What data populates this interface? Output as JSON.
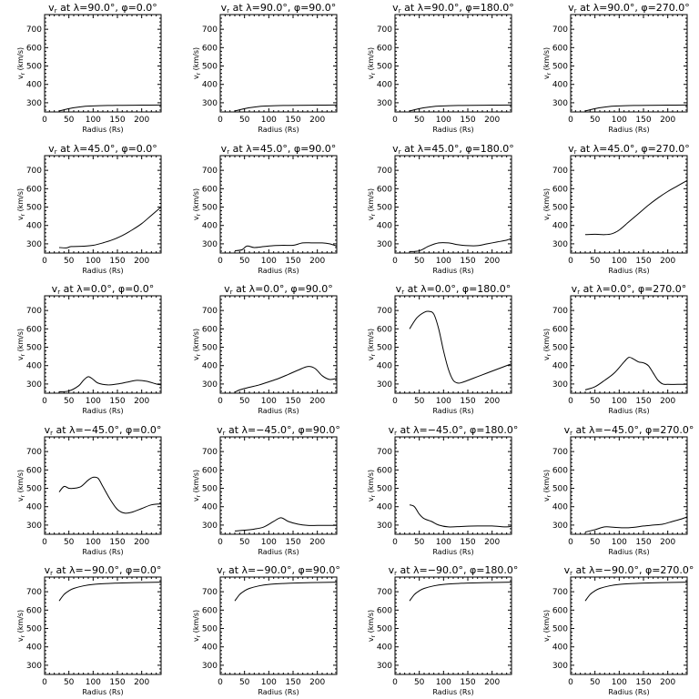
{
  "chart_data": [
    {
      "type": "line",
      "title": "v_r at λ=90.0°, φ=0.0°",
      "title_main": "v",
      "title_sub": "r",
      "title_rest": " at λ=90.0°, φ=0.0°",
      "xlabel": "Radius (Rs)",
      "ylabel": "v_r (km/s)",
      "ylabel_main": "v",
      "ylabel_sub": "r",
      "ylabel_rest": " (km/s)",
      "xlim": [
        0,
        240
      ],
      "ylim": [
        250,
        780
      ],
      "xticks": [
        0,
        50,
        100,
        150,
        200
      ],
      "yticks": [
        300,
        400,
        500,
        600,
        700
      ],
      "grid": false,
      "x": [
        30,
        45,
        60,
        80,
        100,
        130,
        160,
        200,
        240
      ],
      "y": [
        255,
        265,
        273,
        280,
        283,
        285,
        286,
        287,
        288
      ]
    },
    {
      "type": "line",
      "title": "v_r at λ=90.0°, φ=90.0°",
      "title_main": "v",
      "title_sub": "r",
      "title_rest": " at λ=90.0°, φ=90.0°",
      "xlabel": "Radius (Rs)",
      "ylabel": "v_r (km/s)",
      "ylabel_main": "v",
      "ylabel_sub": "r",
      "ylabel_rest": " (km/s)",
      "xlim": [
        0,
        240
      ],
      "ylim": [
        250,
        780
      ],
      "xticks": [
        0,
        50,
        100,
        150,
        200
      ],
      "yticks": [
        300,
        400,
        500,
        600,
        700
      ],
      "grid": false,
      "x": [
        30,
        45,
        60,
        80,
        100,
        130,
        160,
        200,
        240
      ],
      "y": [
        255,
        265,
        273,
        280,
        283,
        285,
        286,
        287,
        288
      ]
    },
    {
      "type": "line",
      "title": "v_r at λ=90.0°, φ=180.0°",
      "title_main": "v",
      "title_sub": "r",
      "title_rest": " at λ=90.0°, φ=180.0°",
      "xlabel": "Radius (Rs)",
      "ylabel": "v_r (km/s)",
      "ylabel_main": "v",
      "ylabel_sub": "r",
      "ylabel_rest": " (km/s)",
      "xlim": [
        0,
        240
      ],
      "ylim": [
        250,
        780
      ],
      "xticks": [
        0,
        50,
        100,
        150,
        200
      ],
      "yticks": [
        300,
        400,
        500,
        600,
        700
      ],
      "grid": false,
      "x": [
        30,
        45,
        60,
        80,
        100,
        130,
        160,
        200,
        240
      ],
      "y": [
        255,
        265,
        273,
        280,
        283,
        285,
        286,
        287,
        288
      ]
    },
    {
      "type": "line",
      "title": "v_r at λ=90.0°, φ=270.0°",
      "title_main": "v",
      "title_sub": "r",
      "title_rest": " at λ=90.0°, φ=270.0°",
      "xlabel": "Radius (Rs)",
      "ylabel": "v_r (km/s)",
      "ylabel_main": "v",
      "ylabel_sub": "r",
      "ylabel_rest": " (km/s)",
      "xlim": [
        0,
        240
      ],
      "ylim": [
        250,
        780
      ],
      "xticks": [
        0,
        50,
        100,
        150,
        200
      ],
      "yticks": [
        300,
        400,
        500,
        600,
        700
      ],
      "grid": false,
      "x": [
        30,
        45,
        60,
        80,
        100,
        130,
        160,
        200,
        240
      ],
      "y": [
        255,
        265,
        273,
        280,
        283,
        285,
        286,
        287,
        288
      ]
    },
    {
      "type": "line",
      "title": "v_r at λ=45.0°, φ=0.0°",
      "title_main": "v",
      "title_sub": "r",
      "title_rest": " at λ=45.0°, φ=0.0°",
      "xlabel": "Radius (Rs)",
      "ylabel": "v_r (km/s)",
      "ylabel_main": "v",
      "ylabel_sub": "r",
      "ylabel_rest": " (km/s)",
      "xlim": [
        0,
        240
      ],
      "ylim": [
        250,
        780
      ],
      "xticks": [
        0,
        50,
        100,
        150,
        200
      ],
      "yticks": [
        300,
        400,
        500,
        600,
        700
      ],
      "grid": false,
      "x": [
        30,
        45,
        55,
        80,
        100,
        120,
        140,
        160,
        180,
        200,
        220,
        240
      ],
      "y": [
        280,
        278,
        285,
        287,
        292,
        305,
        322,
        345,
        375,
        410,
        455,
        500
      ]
    },
    {
      "type": "line",
      "title": "v_r at λ=45.0°, φ=90.0°",
      "title_main": "v",
      "title_sub": "r",
      "title_rest": " at λ=45.0°, φ=90.0°",
      "xlabel": "Radius (Rs)",
      "ylabel": "v_r (km/s)",
      "ylabel_main": "v",
      "ylabel_sub": "r",
      "ylabel_rest": " (km/s)",
      "xlim": [
        0,
        240
      ],
      "ylim": [
        250,
        780
      ],
      "xticks": [
        0,
        50,
        100,
        150,
        200
      ],
      "yticks": [
        300,
        400,
        500,
        600,
        700
      ],
      "grid": false,
      "x": [
        30,
        45,
        55,
        70,
        90,
        110,
        130,
        150,
        170,
        190,
        210,
        225,
        240
      ],
      "y": [
        262,
        268,
        288,
        280,
        285,
        290,
        292,
        292,
        305,
        305,
        305,
        300,
        288
      ]
    },
    {
      "type": "line",
      "title": "v_r at λ=45.0°, φ=180.0°",
      "title_main": "v",
      "title_sub": "r",
      "title_rest": " at λ=45.0°, φ=180.0°",
      "xlabel": "Radius (Rs)",
      "ylabel": "v_r (km/s)",
      "ylabel_main": "v",
      "ylabel_sub": "r",
      "ylabel_rest": " (km/s)",
      "xlim": [
        0,
        240
      ],
      "ylim": [
        250,
        780
      ],
      "xticks": [
        0,
        50,
        100,
        150,
        200
      ],
      "yticks": [
        300,
        400,
        500,
        600,
        700
      ],
      "grid": false,
      "x": [
        30,
        50,
        70,
        90,
        110,
        130,
        150,
        170,
        190,
        210,
        230,
        240
      ],
      "y": [
        258,
        262,
        288,
        305,
        305,
        295,
        290,
        290,
        300,
        310,
        320,
        330
      ]
    },
    {
      "type": "line",
      "title": "v_r at λ=45.0°, φ=270.0°",
      "title_main": "v",
      "title_sub": "r",
      "title_rest": " at λ=45.0°, φ=270.0°",
      "xlabel": "Radius (Rs)",
      "ylabel": "v_r (km/s)",
      "ylabel_main": "v",
      "ylabel_sub": "r",
      "ylabel_rest": " (km/s)",
      "xlim": [
        0,
        240
      ],
      "ylim": [
        250,
        780
      ],
      "xticks": [
        0,
        50,
        100,
        150,
        200
      ],
      "yticks": [
        300,
        400,
        500,
        600,
        700
      ],
      "grid": false,
      "x": [
        30,
        50,
        70,
        85,
        100,
        120,
        140,
        160,
        180,
        200,
        220,
        240
      ],
      "y": [
        350,
        352,
        350,
        355,
        375,
        420,
        465,
        510,
        550,
        585,
        615,
        645
      ]
    },
    {
      "type": "line",
      "title": "v_r at λ=0.0°, φ=0.0°",
      "title_main": "v",
      "title_sub": "r",
      "title_rest": " at λ=0.0°, φ=0.0°",
      "xlabel": "Radius (Rs)",
      "ylabel": "v_r (km/s)",
      "ylabel_main": "v",
      "ylabel_sub": "r",
      "ylabel_rest": " (km/s)",
      "xlim": [
        0,
        240
      ],
      "ylim": [
        250,
        780
      ],
      "xticks": [
        0,
        50,
        100,
        150,
        200
      ],
      "yticks": [
        300,
        400,
        500,
        600,
        700
      ],
      "grid": false,
      "x": [
        30,
        50,
        70,
        80,
        90,
        100,
        110,
        130,
        150,
        170,
        190,
        210,
        230,
        240
      ],
      "y": [
        258,
        262,
        290,
        320,
        340,
        325,
        305,
        295,
        300,
        310,
        320,
        315,
        300,
        295
      ]
    },
    {
      "type": "line",
      "title": "v_r at λ=0.0°, φ=90.0°",
      "title_main": "v",
      "title_sub": "r",
      "title_rest": " at λ=0.0°, φ=90.0°",
      "xlabel": "Radius (Rs)",
      "ylabel": "v_r (km/s)",
      "ylabel_main": "v",
      "ylabel_sub": "r",
      "ylabel_rest": " (km/s)",
      "xlim": [
        0,
        240
      ],
      "ylim": [
        250,
        780
      ],
      "xticks": [
        0,
        50,
        100,
        150,
        200
      ],
      "yticks": [
        300,
        400,
        500,
        600,
        700
      ],
      "grid": false,
      "x": [
        30,
        40,
        60,
        80,
        100,
        120,
        140,
        160,
        180,
        195,
        210,
        225,
        240
      ],
      "y": [
        255,
        268,
        282,
        295,
        312,
        330,
        352,
        375,
        395,
        385,
        345,
        325,
        330
      ]
    },
    {
      "type": "line",
      "title": "v_r at λ=0.0°, φ=180.0°",
      "title_main": "v",
      "title_sub": "r",
      "title_rest": " at λ=0.0°, φ=180.0°",
      "xlabel": "Radius (Rs)",
      "ylabel": "v_r (km/s)",
      "ylabel_main": "v",
      "ylabel_sub": "r",
      "ylabel_rest": " (km/s)",
      "xlim": [
        0,
        240
      ],
      "ylim": [
        250,
        780
      ],
      "xticks": [
        0,
        50,
        100,
        150,
        200
      ],
      "yticks": [
        300,
        400,
        500,
        600,
        700
      ],
      "grid": false,
      "x": [
        30,
        45,
        60,
        70,
        80,
        90,
        100,
        110,
        120,
        130,
        140,
        160,
        180,
        200,
        220,
        240
      ],
      "y": [
        600,
        660,
        690,
        695,
        680,
        600,
        480,
        380,
        320,
        305,
        310,
        330,
        350,
        370,
        390,
        410
      ]
    },
    {
      "type": "line",
      "title": "v_r at λ=0.0°, φ=270.0°",
      "title_main": "v",
      "title_sub": "r",
      "title_rest": " at λ=0.0°, φ=270.0°",
      "xlabel": "Radius (Rs)",
      "ylabel": "v_r (km/s)",
      "ylabel_main": "v",
      "ylabel_sub": "r",
      "ylabel_rest": " (km/s)",
      "xlim": [
        0,
        240
      ],
      "ylim": [
        250,
        780
      ],
      "xticks": [
        0,
        50,
        100,
        150,
        200
      ],
      "yticks": [
        300,
        400,
        500,
        600,
        700
      ],
      "grid": false,
      "x": [
        30,
        50,
        70,
        90,
        110,
        120,
        130,
        140,
        150,
        160,
        170,
        180,
        190,
        200,
        220,
        240
      ],
      "y": [
        268,
        285,
        320,
        360,
        420,
        445,
        435,
        420,
        415,
        400,
        360,
        320,
        300,
        298,
        298,
        298
      ]
    },
    {
      "type": "line",
      "title": "v_r at λ=-45.0°, φ=0.0°",
      "title_main": "v",
      "title_sub": "r",
      "title_rest": " at λ=−45.0°, φ=0.0°",
      "xlabel": "Radius (Rs)",
      "ylabel": "v_r (km/s)",
      "ylabel_main": "v",
      "ylabel_sub": "r",
      "ylabel_rest": " (km/s)",
      "xlim": [
        0,
        240
      ],
      "ylim": [
        250,
        780
      ],
      "xticks": [
        0,
        50,
        100,
        150,
        200
      ],
      "yticks": [
        300,
        400,
        500,
        600,
        700
      ],
      "grid": false,
      "x": [
        30,
        40,
        50,
        60,
        75,
        90,
        100,
        110,
        120,
        135,
        150,
        165,
        180,
        200,
        220,
        240
      ],
      "y": [
        480,
        510,
        500,
        500,
        510,
        545,
        560,
        555,
        510,
        440,
        385,
        365,
        370,
        390,
        410,
        415
      ]
    },
    {
      "type": "line",
      "title": "v_r at λ=-45.0°, φ=90.0°",
      "title_main": "v",
      "title_sub": "r",
      "title_rest": " at λ=−45.0°, φ=90.0°",
      "xlabel": "Radius (Rs)",
      "ylabel": "v_r (km/s)",
      "ylabel_main": "v",
      "ylabel_sub": "r",
      "ylabel_rest": " (km/s)",
      "xlim": [
        0,
        240
      ],
      "ylim": [
        250,
        780
      ],
      "xticks": [
        0,
        50,
        100,
        150,
        200
      ],
      "yticks": [
        300,
        400,
        500,
        600,
        700
      ],
      "grid": false,
      "x": [
        30,
        50,
        70,
        90,
        110,
        125,
        140,
        160,
        180,
        200,
        220,
        240
      ],
      "y": [
        268,
        272,
        278,
        290,
        320,
        340,
        320,
        305,
        298,
        298,
        298,
        298
      ]
    },
    {
      "type": "line",
      "title": "v_r at λ=-45.0°, φ=180.0°",
      "title_main": "v",
      "title_sub": "r",
      "title_rest": " at λ=−45.0°, φ=180.0°",
      "xlabel": "Radius (Rs)",
      "ylabel": "v_r (km/s)",
      "ylabel_main": "v",
      "ylabel_sub": "r",
      "ylabel_rest": " (km/s)",
      "xlim": [
        0,
        240
      ],
      "ylim": [
        250,
        780
      ],
      "xticks": [
        0,
        50,
        100,
        150,
        200
      ],
      "yticks": [
        300,
        400,
        500,
        600,
        700
      ],
      "grid": false,
      "x": [
        30,
        40,
        50,
        60,
        75,
        90,
        110,
        140,
        170,
        200,
        230,
        240
      ],
      "y": [
        410,
        400,
        360,
        335,
        320,
        300,
        290,
        293,
        295,
        295,
        290,
        295
      ]
    },
    {
      "type": "line",
      "title": "v_r at λ=-45.0°, φ=270.0°",
      "title_main": "v",
      "title_sub": "r",
      "title_rest": " at λ=−45.0°, φ=270.0°",
      "xlabel": "Radius (Rs)",
      "ylabel": "v_r (km/s)",
      "ylabel_main": "v",
      "ylabel_sub": "r",
      "ylabel_rest": " (km/s)",
      "xlim": [
        0,
        240
      ],
      "ylim": [
        250,
        780
      ],
      "xticks": [
        0,
        50,
        100,
        150,
        200
      ],
      "yticks": [
        300,
        400,
        500,
        600,
        700
      ],
      "grid": false,
      "x": [
        30,
        50,
        70,
        90,
        110,
        130,
        150,
        170,
        190,
        210,
        230,
        240
      ],
      "y": [
        262,
        275,
        290,
        288,
        285,
        288,
        295,
        300,
        305,
        320,
        335,
        345
      ]
    },
    {
      "type": "line",
      "title": "v_r at λ=-90.0°, φ=0.0°",
      "title_main": "v",
      "title_sub": "r",
      "title_rest": " at λ=−90.0°, φ=0.0°",
      "xlabel": "Radius (Rs)",
      "ylabel": "v_r (km/s)",
      "ylabel_main": "v",
      "ylabel_sub": "r",
      "ylabel_rest": " (km/s)",
      "xlim": [
        0,
        240
      ],
      "ylim": [
        250,
        780
      ],
      "xticks": [
        0,
        50,
        100,
        150,
        200
      ],
      "yticks": [
        300,
        400,
        500,
        600,
        700
      ],
      "grid": false,
      "x": [
        30,
        40,
        50,
        60,
        80,
        100,
        130,
        160,
        200,
        240
      ],
      "y": [
        650,
        685,
        705,
        718,
        732,
        740,
        745,
        748,
        750,
        752
      ]
    },
    {
      "type": "line",
      "title": "v_r at λ=-90.0°, φ=90.0°",
      "title_main": "v",
      "title_sub": "r",
      "title_rest": " at λ=−90.0°, φ=90.0°",
      "xlabel": "Radius (Rs)",
      "ylabel": "v_r (km/s)",
      "ylabel_main": "v",
      "ylabel_sub": "r",
      "ylabel_rest": " (km/s)",
      "xlim": [
        0,
        240
      ],
      "ylim": [
        250,
        780
      ],
      "xticks": [
        0,
        50,
        100,
        150,
        200
      ],
      "yticks": [
        300,
        400,
        500,
        600,
        700
      ],
      "grid": false,
      "x": [
        30,
        40,
        50,
        60,
        80,
        100,
        130,
        160,
        200,
        240
      ],
      "y": [
        650,
        685,
        705,
        718,
        732,
        740,
        745,
        748,
        750,
        752
      ]
    },
    {
      "type": "line",
      "title": "v_r at λ=-90.0°, φ=180.0°",
      "title_main": "v",
      "title_sub": "r",
      "title_rest": " at λ=−90.0°, φ=180.0°",
      "xlabel": "Radius (Rs)",
      "ylabel": "v_r (km/s)",
      "ylabel_main": "v",
      "ylabel_sub": "r",
      "ylabel_rest": " (km/s)",
      "xlim": [
        0,
        240
      ],
      "ylim": [
        250,
        780
      ],
      "xticks": [
        0,
        50,
        100,
        150,
        200
      ],
      "yticks": [
        300,
        400,
        500,
        600,
        700
      ],
      "grid": false,
      "x": [
        30,
        40,
        50,
        60,
        80,
        100,
        130,
        160,
        200,
        240
      ],
      "y": [
        650,
        685,
        705,
        718,
        732,
        740,
        745,
        748,
        750,
        752
      ]
    },
    {
      "type": "line",
      "title": "v_r at λ=-90.0°, φ=270.0°",
      "title_main": "v",
      "title_sub": "r",
      "title_rest": " at λ=−90.0°, φ=270.0°",
      "xlabel": "Radius (Rs)",
      "ylabel": "v_r (km/s)",
      "ylabel_main": "v",
      "ylabel_sub": "r",
      "ylabel_rest": " (km/s)",
      "xlim": [
        0,
        240
      ],
      "ylim": [
        250,
        780
      ],
      "xticks": [
        0,
        50,
        100,
        150,
        200
      ],
      "yticks": [
        300,
        400,
        500,
        600,
        700
      ],
      "grid": false,
      "x": [
        30,
        40,
        50,
        60,
        80,
        100,
        130,
        160,
        200,
        240
      ],
      "y": [
        650,
        685,
        705,
        718,
        732,
        740,
        745,
        748,
        750,
        752
      ]
    }
  ]
}
